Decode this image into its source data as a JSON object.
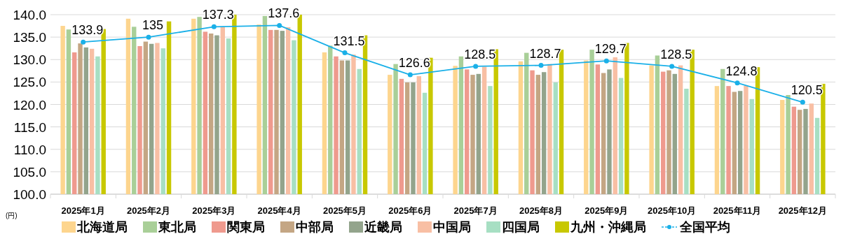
{
  "chart_data": {
    "type": "bar",
    "ylabel": "(円)",
    "categories": [
      "2025年1月",
      "2025年2月",
      "2025年3月",
      "2025年4月",
      "2025年5月",
      "2025年6月",
      "2025年7月",
      "2025年8月",
      "2025年9月",
      "2025年10月",
      "2025年11月",
      "2025年12月"
    ],
    "series": [
      {
        "name": "北海道局",
        "color": "#fdd58e",
        "values": [
          137.5,
          139.1,
          139.1,
          137.8,
          131.6,
          126.6,
          128.6,
          129.6,
          129.8,
          128.7,
          124.1,
          121.0
        ]
      },
      {
        "name": "東北局",
        "color": "#a9cf98",
        "values": [
          136.7,
          137.3,
          139.5,
          139.7,
          133.1,
          129.0,
          130.7,
          131.5,
          132.2,
          130.9,
          127.9,
          122.1
        ]
      },
      {
        "name": "関東局",
        "color": "#ef9a8e",
        "values": [
          131.6,
          133.0,
          136.2,
          136.6,
          130.7,
          125.7,
          127.8,
          127.6,
          128.9,
          127.3,
          124.1,
          119.5
        ]
      },
      {
        "name": "中部局",
        "color": "#c4a684",
        "values": [
          133.6,
          134.0,
          135.8,
          136.6,
          129.8,
          124.9,
          126.6,
          126.6,
          127.0,
          127.6,
          122.8,
          118.8
        ]
      },
      {
        "name": "近畿局",
        "color": "#93a48c",
        "values": [
          132.7,
          133.5,
          135.4,
          136.4,
          129.8,
          124.9,
          126.8,
          127.2,
          127.8,
          126.8,
          123.0,
          119.0
        ]
      },
      {
        "name": "中国局",
        "color": "#f8bfa4",
        "values": [
          132.4,
          133.7,
          137.2,
          137.2,
          131.1,
          126.3,
          128.4,
          129.0,
          130.5,
          128.7,
          124.2,
          120.2
        ]
      },
      {
        "name": "四国局",
        "color": "#a7dfc3",
        "values": [
          130.7,
          132.5,
          134.7,
          134.3,
          127.9,
          122.6,
          124.1,
          124.9,
          125.9,
          123.5,
          121.2,
          117.0
        ]
      },
      {
        "name": "九州・沖縄局",
        "color": "#c8c800",
        "values": [
          136.8,
          138.5,
          140.0,
          140.0,
          135.4,
          130.4,
          132.3,
          132.2,
          133.7,
          132.2,
          128.3,
          124.6
        ]
      },
      {
        "name": "全国平均",
        "color": "#1ab0e8",
        "type": "line",
        "marker": "circle",
        "values": [
          133.9,
          135,
          137.3,
          137.6,
          131.5,
          126.6,
          128.5,
          128.7,
          129.7,
          128.5,
          124.8,
          120.5
        ],
        "value_labels": [
          "133.9",
          "135",
          "137.3",
          "137.6",
          "131.5",
          "126.6",
          "128.5",
          "128.7",
          "129.7",
          "128.5",
          "124.8",
          "120.5"
        ]
      }
    ],
    "ylim": [
      100,
      140
    ],
    "yticks": [
      {
        "value": 100,
        "label": "100.0"
      },
      {
        "value": 105,
        "label": "105.0"
      },
      {
        "value": 110,
        "label": "110.0"
      },
      {
        "value": 115,
        "label": "115.0"
      },
      {
        "value": 120,
        "label": "120.0"
      },
      {
        "value": 125,
        "label": "125.0"
      },
      {
        "value": 130,
        "label": "130.0"
      },
      {
        "value": 135,
        "label": "135.0"
      },
      {
        "value": 140,
        "label": "140.0"
      }
    ],
    "grid": "y",
    "legend": "bottom"
  }
}
